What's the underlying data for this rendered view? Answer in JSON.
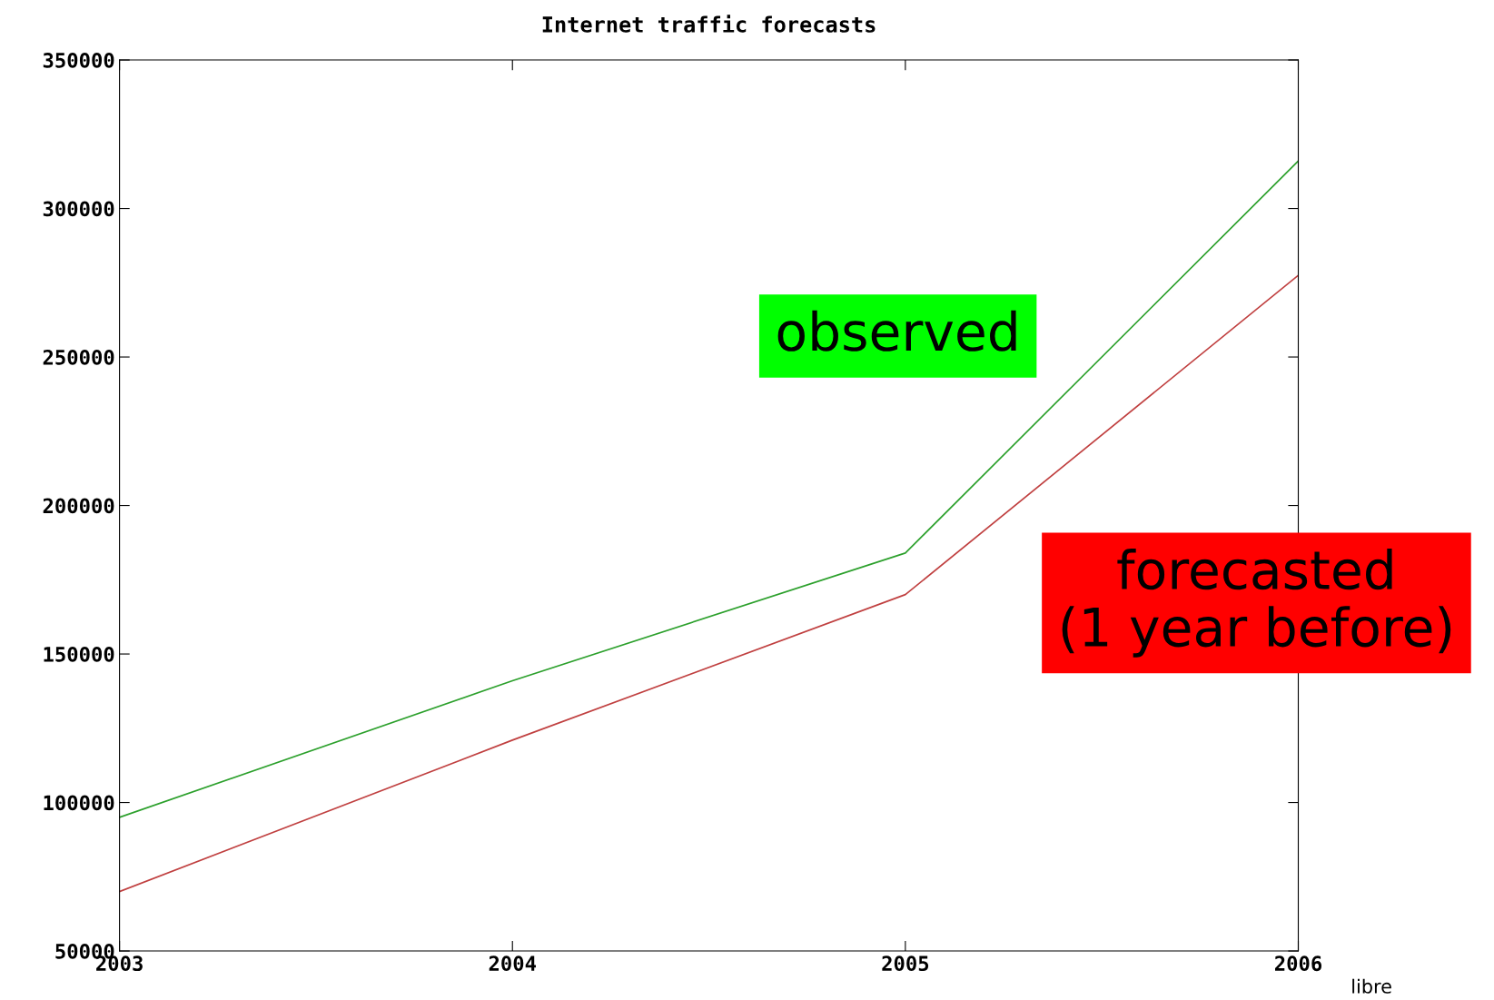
{
  "chart_data": {
    "type": "line",
    "title": "Internet traffic forecasts",
    "x": [
      2003,
      2004,
      2005,
      2006
    ],
    "series": [
      {
        "name": "observed",
        "color": "#2ca02c",
        "values": [
          95000,
          141000,
          184000,
          316000
        ]
      },
      {
        "name": "forecasted\n(1 year before)",
        "color": "#c04040",
        "values": [
          70000,
          121000,
          170000,
          277500
        ]
      }
    ],
    "xlim": [
      2003,
      2006
    ],
    "xticks": [
      2003,
      2004,
      2005,
      2006
    ],
    "ylim": [
      50000,
      350000
    ],
    "yticks": [
      50000,
      100000,
      150000,
      200000,
      250000,
      300000,
      350000
    ],
    "grid": false,
    "legend": false,
    "marker": "none",
    "line_style": "solid",
    "annotations": [
      "libre"
    ]
  }
}
